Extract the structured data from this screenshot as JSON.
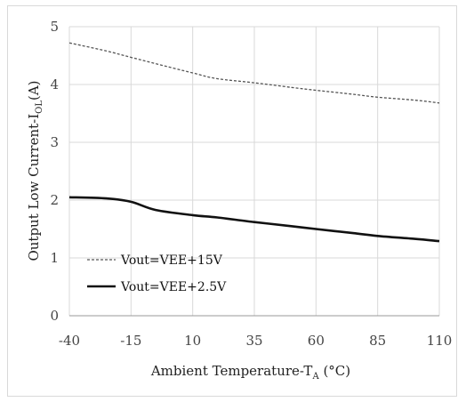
{
  "chart_data": {
    "type": "line",
    "title": "",
    "xlabel": {
      "main": "Ambient Temperature-T",
      "sub": "A",
      "tail": " (°C)"
    },
    "ylabel": {
      "main": "Output Low Current-I",
      "sub": "OL",
      "tail": "(A)"
    },
    "xlim": [
      -40,
      110
    ],
    "ylim": [
      0,
      5
    ],
    "x_ticks": [
      "-40",
      "-15",
      "10",
      "35",
      "60",
      "85",
      "110"
    ],
    "y_ticks": [
      "0",
      "1",
      "2",
      "3",
      "4",
      "5"
    ],
    "grid": true,
    "legend_position": "lower-left",
    "series": [
      {
        "name": "Vout=VEE+15V",
        "style": "dashed",
        "color": "#555555",
        "x": [
          -40,
          -25,
          -15,
          -5,
          10,
          20,
          35,
          50,
          60,
          75,
          85,
          100,
          110
        ],
        "y": [
          4.72,
          4.58,
          4.47,
          4.36,
          4.2,
          4.1,
          4.03,
          3.95,
          3.9,
          3.83,
          3.78,
          3.73,
          3.68
        ]
      },
      {
        "name": "Vout=VEE+2.5V",
        "style": "solid",
        "color": "#111111",
        "x": [
          -40,
          -25,
          -15,
          -5,
          10,
          20,
          35,
          50,
          60,
          75,
          85,
          100,
          110
        ],
        "y": [
          2.05,
          2.03,
          1.97,
          1.83,
          1.74,
          1.7,
          1.62,
          1.55,
          1.5,
          1.43,
          1.38,
          1.33,
          1.29
        ]
      }
    ]
  }
}
